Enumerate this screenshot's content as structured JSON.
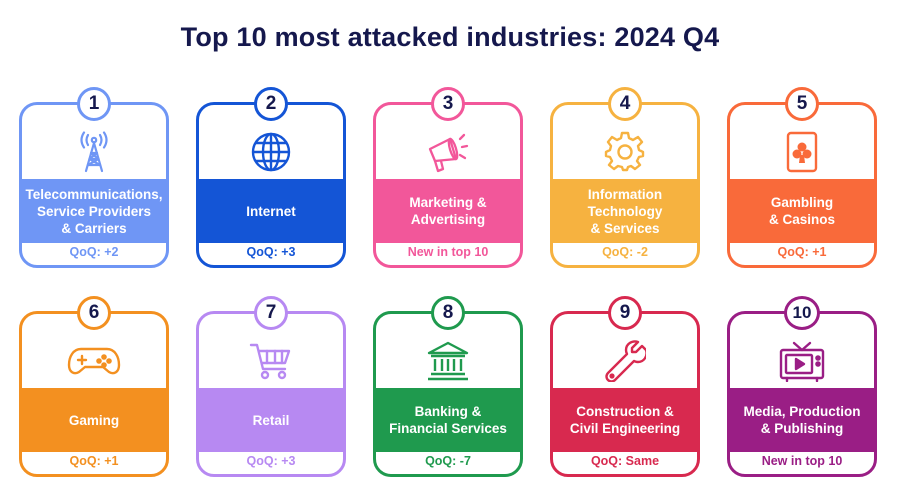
{
  "title": "Top 10 most attacked industries: 2024 Q4",
  "cards": [
    {
      "rank": "1",
      "name": "Telecommunications,\nService Providers\n& Carriers",
      "qoq": "QoQ: +2",
      "color": "#6f96f5",
      "icon": "antenna-tower-icon"
    },
    {
      "rank": "2",
      "name": "Internet",
      "qoq": "QoQ: +3",
      "color": "#1455d6",
      "icon": "globe-icon"
    },
    {
      "rank": "3",
      "name": "Marketing &\nAdvertising",
      "qoq": "New in top 10",
      "color": "#f2579a",
      "icon": "megaphone-icon"
    },
    {
      "rank": "4",
      "name": "Information\nTechnology\n& Services",
      "qoq": "QoQ: -2",
      "color": "#f6b240",
      "icon": "gear-icon"
    },
    {
      "rank": "5",
      "name": "Gambling\n& Casinos",
      "qoq": "QoQ: +1",
      "color": "#f96a3a",
      "icon": "playing-card-icon"
    },
    {
      "rank": "6",
      "name": "Gaming",
      "qoq": "QoQ: +1",
      "color": "#f39020",
      "icon": "gamepad-icon"
    },
    {
      "rank": "7",
      "name": "Retail",
      "qoq": "QoQ: +3",
      "color": "#b789f2",
      "icon": "shopping-cart-icon"
    },
    {
      "rank": "8",
      "name": "Banking &\nFinancial Services",
      "qoq": "QoQ: -7",
      "color": "#1f9a4e",
      "icon": "bank-icon"
    },
    {
      "rank": "9",
      "name": "Construction &\nCivil Engineering",
      "qoq": "QoQ: Same",
      "color": "#d8294f",
      "icon": "wrench-icon"
    },
    {
      "rank": "10",
      "name": "Media, Production\n& Publishing",
      "qoq": "New in top 10",
      "color": "#9a1e85",
      "icon": "tv-icon"
    }
  ]
}
